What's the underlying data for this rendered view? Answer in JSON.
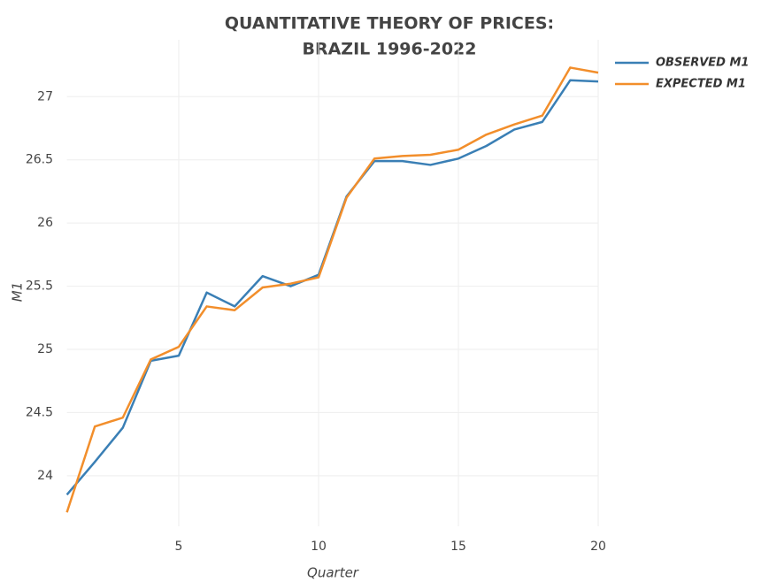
{
  "chart_data": {
    "type": "line",
    "title": [
      "QUANTITATIVE THEORY OF PRICES:",
      "BRAZIL 1996-2022"
    ],
    "x_label": "Quarter",
    "y_label": "M1",
    "x": [
      1,
      2,
      3,
      4,
      5,
      6,
      7,
      8,
      9,
      10,
      11,
      12,
      13,
      14,
      15,
      16,
      17,
      18,
      19,
      20
    ],
    "series": [
      {
        "name": "OBSERVED M1",
        "color": "#3a7fb5",
        "values": [
          23.85,
          24.11,
          24.38,
          24.91,
          24.95,
          25.45,
          25.34,
          25.58,
          25.5,
          25.59,
          26.21,
          26.49,
          26.49,
          26.46,
          26.51,
          26.61,
          26.74,
          26.8,
          27.13,
          27.12
        ]
      },
      {
        "name": "EXPECTED M1",
        "color": "#f28e2b",
        "values": [
          23.71,
          24.39,
          24.46,
          24.92,
          25.02,
          25.34,
          25.31,
          25.49,
          25.52,
          25.57,
          26.2,
          26.51,
          26.53,
          26.54,
          26.58,
          26.7,
          26.78,
          26.85,
          27.23,
          27.19
        ]
      }
    ],
    "xlim": [
      1,
      20
    ],
    "xticks": [
      5,
      10,
      15,
      20
    ],
    "ylim": [
      23.6,
      27.45
    ],
    "yticks": [
      24,
      24.5,
      25,
      25.5,
      26,
      26.5,
      27
    ],
    "grid": true,
    "legend": "top-right"
  }
}
